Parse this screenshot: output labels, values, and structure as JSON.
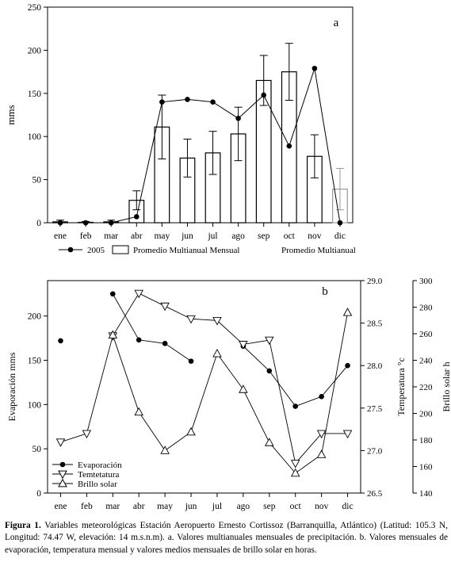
{
  "figure": {
    "caption_label": "Figura 1.",
    "caption_text": " Variables meteorológicas Estación Aeropuerto Ernesto Cortissoz (Barranquilla, Atlántico) (Latitud: 105.3 N, Longitud: 74.47 W, elevación: 14 m.s.n.m). a. Valores multianuales mensuales de precipitación. b. Valores mensuales de evaporación, temperatura mensual y valores medios mensuales de brillo solar en horas."
  },
  "chart_data": [
    {
      "type": "bar",
      "panel_label": "a",
      "categories": [
        "ene",
        "feb",
        "mar",
        "abr",
        "may",
        "jun",
        "jul",
        "ago",
        "sep",
        "oct",
        "nov",
        "dic"
      ],
      "ylabel": "mms",
      "ylim": [
        0,
        250
      ],
      "yticks": [
        0,
        50,
        100,
        150,
        200,
        250
      ],
      "series": [
        {
          "name": "Promedio Multianual Mensual",
          "kind": "bar",
          "color": "#000000",
          "values": [
            1,
            0.5,
            1,
            26,
            111,
            75,
            81,
            103,
            165,
            175,
            77,
            null
          ],
          "errors": [
            2,
            1,
            2,
            11,
            37,
            22,
            25,
            31,
            29,
            33,
            25,
            null
          ]
        },
        {
          "name": "Promedio Multianual",
          "kind": "bar",
          "color": "#999999",
          "values": [
            null,
            null,
            null,
            null,
            null,
            null,
            null,
            null,
            null,
            null,
            null,
            39
          ],
          "errors": [
            null,
            null,
            null,
            null,
            null,
            null,
            null,
            null,
            null,
            null,
            null,
            24
          ]
        },
        {
          "name": "2005",
          "kind": "line",
          "marker": "filled-circle",
          "color": "#000000",
          "values": [
            0,
            0,
            0,
            7,
            140,
            143,
            140,
            121,
            148,
            89,
            179,
            0
          ]
        }
      ],
      "legend_placement": "bottom",
      "grid": false
    },
    {
      "type": "line",
      "panel_label": "b",
      "categories": [
        "ene",
        "feb",
        "mar",
        "abr",
        "may",
        "jun",
        "jul",
        "ago",
        "sep",
        "oct",
        "nov",
        "dic"
      ],
      "axes": {
        "left": {
          "label": "Evaporación mms",
          "ylim": [
            0,
            240
          ],
          "ticks": [
            0,
            50,
            100,
            150,
            200
          ]
        },
        "right1": {
          "label": "Temperatura °c",
          "ylim": [
            26.5,
            29.0
          ],
          "ticks": [
            26.5,
            27.0,
            27.5,
            28.0,
            28.5,
            29.0
          ]
        },
        "right2": {
          "label": "Brillo solar h",
          "ylim": [
            140,
            300
          ],
          "ticks": [
            140,
            160,
            180,
            200,
            220,
            240,
            260,
            280,
            300
          ]
        }
      },
      "series": [
        {
          "name": "Evaporación",
          "axis": "left",
          "marker": "filled-circle",
          "connect_from": 6,
          "values": [
            172,
            null,
            225,
            173,
            169,
            149,
            null,
            166,
            138,
            98,
            109,
            144
          ]
        },
        {
          "name": "Temtetatura",
          "axis": "right1",
          "marker": "triangle-down",
          "values": [
            27.1,
            27.2,
            28.35,
            28.85,
            28.7,
            28.55,
            28.53,
            28.25,
            28.3,
            26.85,
            27.2,
            27.2
          ]
        },
        {
          "name": "Brillo solar",
          "axis": "right2",
          "marker": "triangle-up",
          "values": [
            null,
            null,
            259,
            201,
            172,
            186,
            245,
            218,
            178,
            155,
            169,
            276
          ]
        }
      ],
      "legend_placement": "bottom-left",
      "grid": false
    }
  ]
}
